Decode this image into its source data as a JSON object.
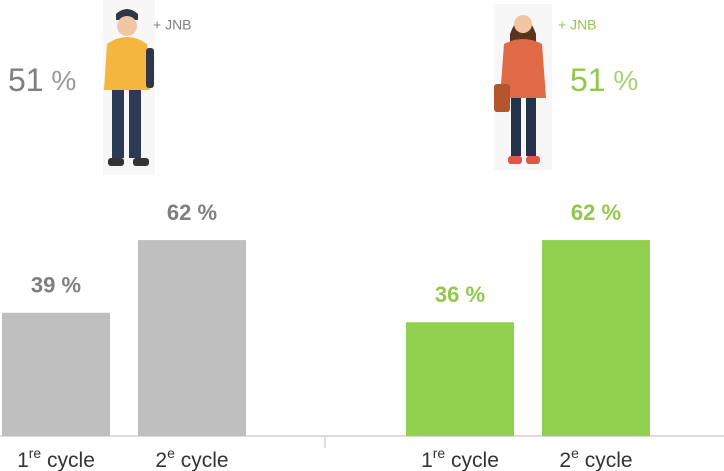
{
  "chart_data": [
    {
      "type": "bar",
      "annotation": "+ JNB",
      "headline": "51 %",
      "categories": [
        "1re cycle",
        "2e cycle"
      ],
      "values": [
        39,
        62
      ],
      "value_labels": [
        "39 %",
        "62 %"
      ],
      "color": "#bfbfbf",
      "text_color": "#7f7f7f"
    },
    {
      "type": "bar",
      "annotation": "+ JNB",
      "headline": "51 %",
      "categories": [
        "1re cycle",
        "2e cycle"
      ],
      "values": [
        36,
        62
      ],
      "value_labels": [
        "36 %",
        "62 %"
      ],
      "color": "#92d050",
      "text_color": "#92c84a"
    }
  ]
}
